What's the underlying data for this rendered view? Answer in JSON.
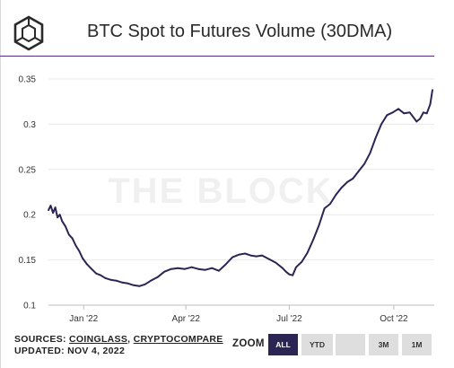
{
  "header": {
    "title": "BTC Spot to Futures Volume (30DMA)"
  },
  "watermark": "THE BLOCK",
  "footer": {
    "sources_prefix": "SOURCES: ",
    "source_1": "COINGLASS",
    "separator": ", ",
    "source_2": "CRYPTOCOMPARE",
    "updated": "UPDATED: NOV 4, 2022"
  },
  "zoom": {
    "label": "ZOOM",
    "buttons": [
      {
        "label": "ALL",
        "active": true
      },
      {
        "label": "YTD",
        "active": false
      },
      {
        "label": "",
        "active": false
      },
      {
        "label": "3M",
        "active": false
      },
      {
        "label": "1M",
        "active": false
      }
    ]
  },
  "colors": {
    "line": "#2b2553",
    "brand_purple": "#5b2b86",
    "active_button": "#2b2553"
  },
  "chart_data": {
    "type": "line",
    "title": "BTC Spot to Futures Volume (30DMA)",
    "xlabel": "",
    "ylabel": "",
    "x_ticks": [
      "Jan '22",
      "Apr '22",
      "Jul '22",
      "Oct '22"
    ],
    "x_tick_dates": [
      "2022-01-01",
      "2022-04-01",
      "2022-07-01",
      "2022-10-01"
    ],
    "y_ticks": [
      "0.1",
      "0.15",
      "0.2",
      "0.25",
      "0.3",
      "0.35"
    ],
    "xlim": [
      "2021-12-01",
      "2022-11-04"
    ],
    "ylim": [
      0.1,
      0.35
    ],
    "grid": "horizontal",
    "legend": "none",
    "series": [
      {
        "x": [
          "2021-12-01",
          "2021-12-03",
          "2021-12-05",
          "2021-12-07",
          "2021-12-09",
          "2021-12-11",
          "2021-12-13",
          "2021-12-16",
          "2021-12-19",
          "2021-12-22",
          "2021-12-25",
          "2021-12-28",
          "2021-12-31",
          "2022-01-04",
          "2022-01-08",
          "2022-01-12",
          "2022-01-16",
          "2022-01-20",
          "2022-01-25",
          "2022-01-30",
          "2022-02-04",
          "2022-02-09",
          "2022-02-14",
          "2022-02-19",
          "2022-02-24",
          "2022-03-01",
          "2022-03-07",
          "2022-03-13",
          "2022-03-19",
          "2022-03-25",
          "2022-03-31",
          "2022-04-06",
          "2022-04-12",
          "2022-04-18",
          "2022-04-24",
          "2022-04-30",
          "2022-05-06",
          "2022-05-12",
          "2022-05-18",
          "2022-05-23",
          "2022-05-28",
          "2022-06-02",
          "2022-06-07",
          "2022-06-13",
          "2022-06-19",
          "2022-06-25",
          "2022-06-28",
          "2022-07-01",
          "2022-07-04",
          "2022-07-07",
          "2022-07-12",
          "2022-07-17",
          "2022-07-22",
          "2022-07-27",
          "2022-08-01",
          "2022-08-06",
          "2022-08-11",
          "2022-08-16",
          "2022-08-21",
          "2022-08-26",
          "2022-08-31",
          "2022-09-05",
          "2022-09-10",
          "2022-09-15",
          "2022-09-20",
          "2022-09-25",
          "2022-09-30",
          "2022-10-05",
          "2022-10-10",
          "2022-10-15",
          "2022-10-18",
          "2022-10-21",
          "2022-10-24",
          "2022-10-27",
          "2022-10-30",
          "2022-11-02",
          "2022-11-04"
        ],
        "y": [
          0.205,
          0.21,
          0.202,
          0.208,
          0.197,
          0.2,
          0.193,
          0.187,
          0.178,
          0.174,
          0.166,
          0.16,
          0.152,
          0.145,
          0.14,
          0.135,
          0.133,
          0.13,
          0.128,
          0.127,
          0.125,
          0.124,
          0.122,
          0.121,
          0.123,
          0.127,
          0.131,
          0.137,
          0.14,
          0.141,
          0.14,
          0.142,
          0.14,
          0.139,
          0.141,
          0.138,
          0.145,
          0.153,
          0.156,
          0.157,
          0.155,
          0.154,
          0.155,
          0.151,
          0.147,
          0.141,
          0.137,
          0.134,
          0.133,
          0.142,
          0.148,
          0.158,
          0.172,
          0.188,
          0.207,
          0.212,
          0.222,
          0.23,
          0.236,
          0.24,
          0.248,
          0.256,
          0.268,
          0.285,
          0.3,
          0.31,
          0.313,
          0.317,
          0.312,
          0.313,
          0.308,
          0.303,
          0.306,
          0.313,
          0.312,
          0.322,
          0.338
        ]
      }
    ]
  }
}
